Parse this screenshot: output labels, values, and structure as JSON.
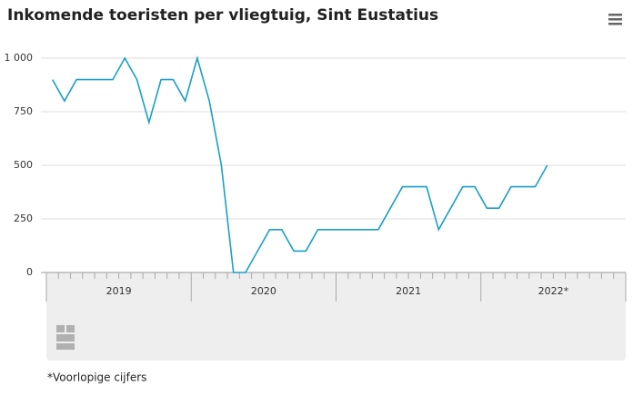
{
  "chart_data": {
    "type": "line",
    "title": "Inkomende toeristen per vliegtuig, Sint Eustatius",
    "years": [
      "2019",
      "2020",
      "2021",
      "2022*"
    ],
    "series": [
      {
        "name": "Inkomende toeristen",
        "color": "#1a9fc7",
        "values": [
          900,
          800,
          900,
          900,
          900,
          900,
          1000,
          900,
          700,
          900,
          900,
          800,
          1000,
          800,
          500,
          0,
          0,
          100,
          200,
          200,
          100,
          100,
          200,
          200,
          200,
          200,
          200,
          200,
          300,
          400,
          400,
          400,
          200,
          300,
          400,
          400,
          300,
          300,
          400,
          400,
          400,
          500,
          null,
          null,
          null,
          null,
          null,
          null
        ]
      }
    ],
    "ylim": [
      0,
      1000
    ],
    "yticks": [
      0,
      250,
      500,
      750,
      {
        "value": 1000,
        "label": "1 000"
      }
    ],
    "grid": true,
    "footnote": "*Voorlopige cijfers"
  }
}
